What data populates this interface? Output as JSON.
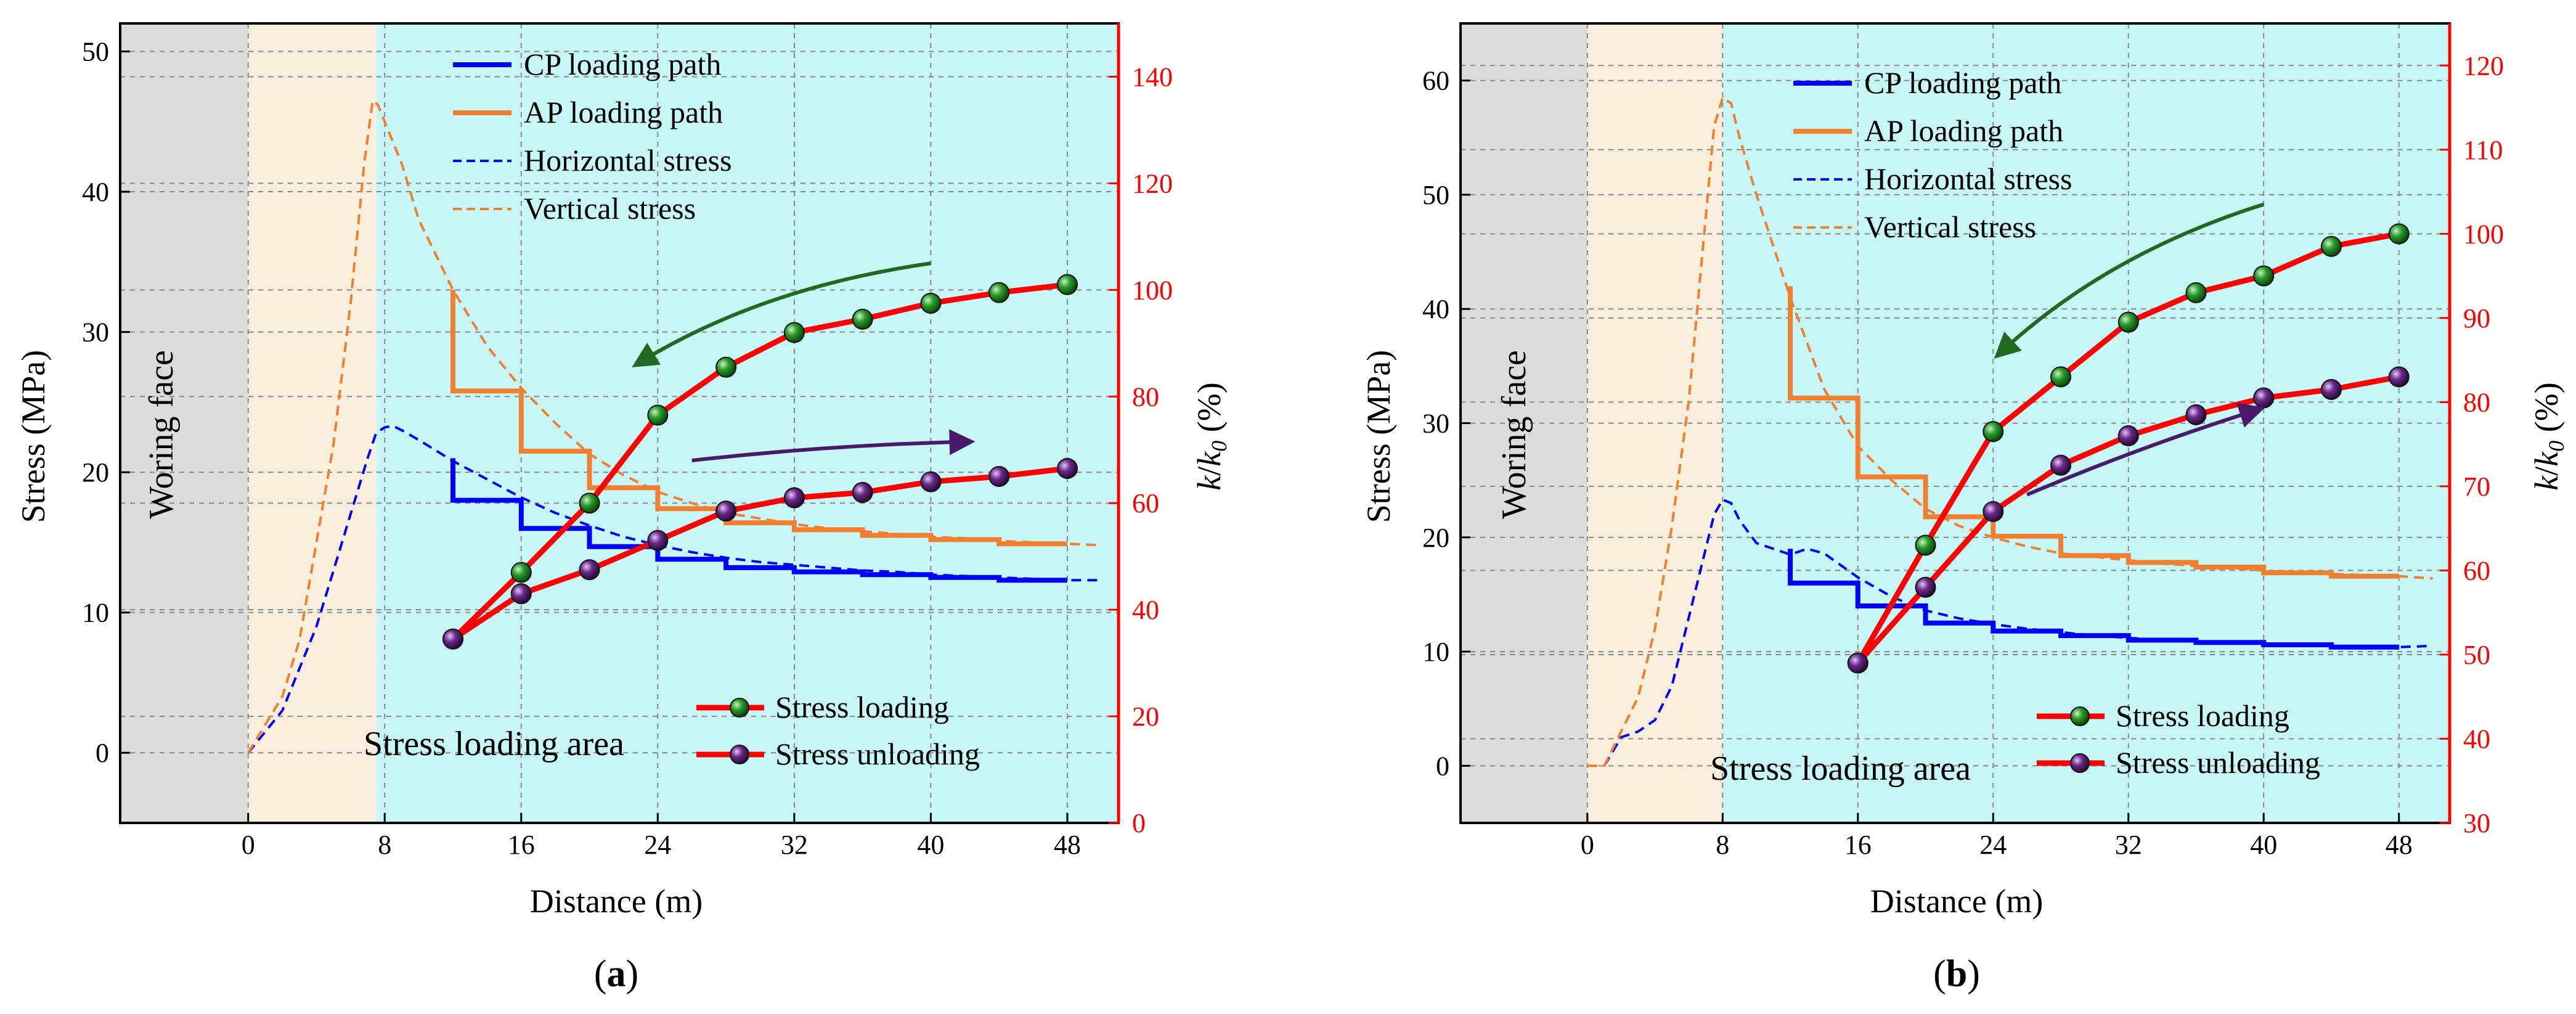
{
  "chart_data": [
    {
      "type": "line",
      "panel_label": "a",
      "xlabel": "Distance (m)",
      "ylabel": "Stress (MPa)",
      "y2label_k": "k",
      "y2label_slash": "/",
      "y2label_k0": "k",
      "y2label_sub": "0",
      "y2label_unit": " (%)",
      "xlim": [
        -7.5,
        51
      ],
      "ylim": [
        -5,
        52
      ],
      "y2lim": [
        0,
        150
      ],
      "xticks": [
        0,
        8,
        16,
        24,
        32,
        40,
        48
      ],
      "xticklabels": [
        "0",
        "8",
        "16",
        "24",
        "32",
        "40",
        "48"
      ],
      "yticks": [
        0,
        10,
        20,
        30,
        40,
        50
      ],
      "yticklabels": [
        "0",
        "10",
        "20",
        "30",
        "40",
        "50"
      ],
      "y2ticks": [
        0,
        20,
        40,
        60,
        80,
        100,
        120,
        140
      ],
      "y2ticklabels": [
        "0",
        "20",
        "40",
        "60",
        "80",
        "100",
        "120",
        "140"
      ],
      "zones": {
        "face_end": 0,
        "transition_end": 7.5
      },
      "face_label": "Woring face",
      "area_label": "Stress loading area",
      "legend_top": [
        "CP loading path",
        "AP loading path",
        "Horizontal stress",
        "Vertical stress"
      ],
      "legend_bottom": [
        "Stress loading",
        "Stress unloading"
      ],
      "series": [
        {
          "name": "CP loading path",
          "axis": "left",
          "style": "step",
          "color": "#0000ff",
          "x": [
            12,
            12,
            16,
            16,
            20,
            20,
            24,
            24,
            28,
            28,
            32,
            32,
            36,
            36,
            40,
            40,
            44,
            44,
            48
          ],
          "y": [
            21,
            18,
            18,
            16,
            16,
            14.7,
            14.7,
            13.8,
            13.8,
            13.2,
            13.2,
            12.9,
            12.9,
            12.7,
            12.7,
            12.5,
            12.5,
            12.3,
            12.3
          ]
        },
        {
          "name": "AP loading path",
          "axis": "left",
          "style": "step",
          "color": "#f08030",
          "x": [
            12,
            12,
            16,
            16,
            20,
            20,
            24,
            24,
            28,
            28,
            32,
            32,
            36,
            36,
            40,
            40,
            44,
            44,
            48
          ],
          "y": [
            33,
            25.8,
            25.8,
            21.5,
            21.5,
            18.9,
            18.9,
            17.4,
            17.4,
            16.4,
            16.4,
            15.9,
            15.9,
            15.5,
            15.5,
            15.2,
            15.2,
            14.9,
            14.9
          ]
        },
        {
          "name": "Horizontal stress",
          "axis": "left",
          "style": "dash",
          "color": "#0000ff",
          "x": [
            0,
            1,
            2,
            3,
            4,
            5,
            6,
            7,
            7.5,
            8,
            8.5,
            9,
            10,
            12,
            14,
            16,
            18,
            20,
            22,
            24,
            26,
            28,
            30,
            32,
            34,
            36,
            38,
            40,
            42,
            44,
            46,
            48,
            50
          ],
          "y": [
            0,
            1.5,
            3,
            6,
            9,
            13,
            17,
            21,
            22.8,
            23.2,
            23.3,
            23,
            22.3,
            20.8,
            19.5,
            18.2,
            17.1,
            16.2,
            15.4,
            14.8,
            14.3,
            13.9,
            13.6,
            13.4,
            13.2,
            13.0,
            12.9,
            12.7,
            12.6,
            12.5,
            12.4,
            12.3,
            12.3
          ]
        },
        {
          "name": "Vertical stress",
          "axis": "left",
          "style": "dash",
          "color": "#f08030",
          "x": [
            0,
            1,
            2,
            3,
            4,
            5,
            6,
            6.8,
            7.3,
            7.6,
            8,
            9,
            10,
            12,
            14,
            16,
            18,
            20,
            22,
            24,
            26,
            28,
            30,
            32,
            34,
            36,
            38,
            40,
            42,
            44,
            46,
            48,
            50
          ],
          "y": [
            0,
            2,
            4,
            8,
            15,
            22,
            32,
            42,
            46.5,
            46.2,
            45,
            42,
            38,
            33,
            29,
            26,
            23.5,
            21.3,
            19.8,
            18.6,
            17.8,
            17.1,
            16.7,
            16.3,
            16.0,
            15.8,
            15.6,
            15.4,
            15.3,
            15.1,
            15.0,
            14.9,
            14.8
          ]
        },
        {
          "name": "Stress loading",
          "axis": "right",
          "style": "markers",
          "color": "#ff0000",
          "marker": "#1f7a1f",
          "x": [
            12,
            16,
            20,
            24,
            28,
            32,
            36,
            40,
            44,
            48
          ],
          "y": [
            34.5,
            47,
            60,
            76.5,
            85.5,
            92,
            94.5,
            97.5,
            99.5,
            101
          ]
        },
        {
          "name": "Stress unloading",
          "axis": "right",
          "style": "markers",
          "color": "#ff0000",
          "marker": "#5a1a7a",
          "x": [
            12,
            16,
            20,
            24,
            28,
            32,
            36,
            40,
            44,
            48
          ],
          "y": [
            34.5,
            43,
            47.5,
            53,
            58.5,
            61,
            62,
            64,
            65,
            66.5
          ]
        }
      ],
      "arrows": [
        {
          "color": "#1f6a1f",
          "from": [
            40,
            105
          ],
          "to": [
            23,
            86.5
          ]
        },
        {
          "color": "#4a1a6a",
          "from": [
            26,
            68
          ],
          "to": [
            42,
            71.5
          ]
        }
      ]
    },
    {
      "type": "line",
      "panel_label": "b",
      "xlabel": "Distance (m)",
      "ylabel": "Stress (MPa)",
      "y2label_k": "k",
      "y2label_slash": "/",
      "y2label_k0": "k",
      "y2label_sub": "0",
      "y2label_unit": " (%)",
      "xlim": [
        -7.5,
        51
      ],
      "ylim": [
        -5,
        65
      ],
      "y2lim": [
        30,
        125
      ],
      "xticks": [
        0,
        8,
        16,
        24,
        32,
        40,
        48
      ],
      "xticklabels": [
        "0",
        "8",
        "16",
        "24",
        "32",
        "40",
        "48"
      ],
      "yticks": [
        0,
        10,
        20,
        30,
        40,
        50,
        60
      ],
      "yticklabels": [
        "0",
        "10",
        "20",
        "30",
        "40",
        "50",
        "60"
      ],
      "y2ticks": [
        30,
        40,
        50,
        60,
        70,
        80,
        90,
        100,
        110,
        120
      ],
      "y2ticklabels": [
        "30",
        "40",
        "50",
        "60",
        "70",
        "80",
        "90",
        "100",
        "110",
        "120"
      ],
      "zones": {
        "face_end": 0,
        "transition_end": 8
      },
      "face_label": "Woring face",
      "area_label": "Stress loading area",
      "legend_top": [
        "CP loading path",
        "AP loading path",
        "Horizontal stress",
        "Vertical stress"
      ],
      "legend_bottom": [
        "Stress loading",
        "Stress unloading"
      ],
      "series": [
        {
          "name": "CP loading path",
          "axis": "left",
          "style": "step",
          "color": "#0000ff",
          "x": [
            12,
            12,
            16,
            16,
            20,
            20,
            24,
            24,
            28,
            28,
            32,
            32,
            36,
            36,
            40,
            40,
            44,
            44,
            48
          ],
          "y": [
            19,
            16,
            16,
            14,
            14,
            12.5,
            12.5,
            11.8,
            11.8,
            11.4,
            11.4,
            11,
            11,
            10.8,
            10.8,
            10.6,
            10.6,
            10.4,
            10.4
          ]
        },
        {
          "name": "AP loading path",
          "axis": "left",
          "style": "step",
          "color": "#f08030",
          "x": [
            12,
            12,
            16,
            16,
            20,
            20,
            24,
            24,
            28,
            28,
            32,
            32,
            36,
            36,
            40,
            40,
            44,
            44,
            48
          ],
          "y": [
            42,
            32.2,
            32.2,
            25.3,
            25.3,
            21.8,
            21.8,
            20.1,
            20.1,
            18.4,
            18.4,
            17.8,
            17.8,
            17.4,
            17.4,
            16.9,
            16.9,
            16.6,
            16.6
          ]
        },
        {
          "name": "Horizontal stress",
          "axis": "left",
          "style": "dash",
          "color": "#0000ff",
          "x": [
            1,
            2,
            3,
            4,
            5,
            6,
            7,
            7.5,
            8,
            8.5,
            9,
            10,
            12,
            13,
            14,
            16,
            18,
            20,
            22,
            24,
            26,
            28,
            30,
            32,
            34,
            36,
            38,
            40,
            42,
            44,
            46,
            48,
            50
          ],
          "y": [
            0,
            2.5,
            3,
            4,
            7,
            13,
            19,
            22,
            23.3,
            23,
            21.5,
            19.5,
            18.5,
            19,
            18.6,
            16.5,
            14.8,
            13.6,
            12.9,
            12.4,
            12.0,
            11.7,
            11.4,
            11.2,
            11.0,
            10.9,
            10.8,
            10.7,
            10.6,
            10.5,
            10.4,
            10.4,
            10.5
          ]
        },
        {
          "name": "Vertical stress",
          "axis": "left",
          "style": "dash",
          "color": "#f08030",
          "x": [
            0,
            1,
            2,
            3,
            4,
            5,
            6,
            7,
            7.5,
            8,
            8.5,
            9,
            10,
            12,
            14,
            16,
            18,
            20,
            22,
            24,
            26,
            28,
            30,
            32,
            34,
            36,
            38,
            40,
            42,
            44,
            46,
            48,
            50
          ],
          "y": [
            0,
            0,
            3,
            6,
            12,
            21,
            32,
            48,
            56,
            58.5,
            58,
            55,
            50,
            41,
            33,
            28,
            25,
            22.5,
            21,
            20,
            19.2,
            18.6,
            18.3,
            18.0,
            17.7,
            17.5,
            17.3,
            17.1,
            16.9,
            16.8,
            16.7,
            16.6,
            16.4
          ]
        },
        {
          "name": "Stress loading",
          "axis": "right",
          "style": "markers",
          "color": "#ff0000",
          "marker": "#1f7a1f",
          "x": [
            16,
            20,
            24,
            28,
            32,
            36,
            40,
            44,
            48
          ],
          "y": [
            49,
            63,
            76.5,
            83,
            89.5,
            93,
            95,
            98.5,
            100
          ]
        },
        {
          "name": "Stress unloading",
          "axis": "right",
          "style": "markers",
          "color": "#ff0000",
          "marker": "#5a1a7a",
          "x": [
            16,
            20,
            24,
            28,
            32,
            36,
            40,
            44,
            48
          ],
          "y": [
            49,
            58,
            67,
            72.5,
            76,
            78.5,
            80.5,
            81.5,
            83
          ]
        }
      ],
      "arrows": [
        {
          "color": "#1f6a1f",
          "from": [
            40,
            103.5
          ],
          "to": [
            24.5,
            86
          ]
        },
        {
          "color": "#4a1a6a",
          "from": [
            26,
            69
          ],
          "to": [
            39.5,
            79
          ]
        }
      ]
    }
  ]
}
